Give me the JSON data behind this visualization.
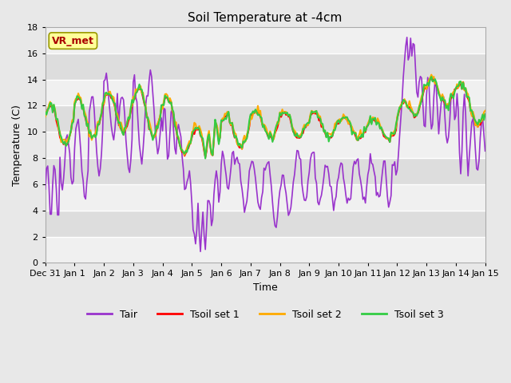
{
  "title": "Soil Temperature at -4cm",
  "xlabel": "Time",
  "ylabel": "Temperature (C)",
  "ylim": [
    0,
    18
  ],
  "series": {
    "Tair": {
      "color": "#9933cc",
      "linewidth": 1.2,
      "zorder": 3
    },
    "Tsoil set 1": {
      "color": "#ff0000",
      "linewidth": 1.5,
      "zorder": 4
    },
    "Tsoil set 2": {
      "color": "#ffaa00",
      "linewidth": 1.5,
      "zorder": 5
    },
    "Tsoil set 3": {
      "color": "#33cc44",
      "linewidth": 1.5,
      "zorder": 6
    }
  },
  "bg_color": "#e8e8e8",
  "plot_bg_color_light": "#f0f0f0",
  "plot_bg_color_dark": "#dddddd",
  "annotation_text": "VR_met",
  "annotation_color": "#aa0000",
  "annotation_bg": "#ffff99",
  "annotation_border": "#999900",
  "title_fontsize": 11,
  "axis_fontsize": 9,
  "tick_fontsize": 8,
  "grid_color": "#ffffff",
  "grid_linewidth": 1.0,
  "yticks": [
    0,
    2,
    4,
    6,
    8,
    10,
    12,
    14,
    16,
    18
  ],
  "xtick_labels": [
    "Dec 31",
    "Jan 1",
    "Jan 2",
    "Jan 3",
    "Jan 4",
    "Jan 5",
    "Jan 6",
    "Jan 7",
    "Jan 8",
    "Jan 9",
    "Jan 10",
    "Jan 11",
    "Jan 12",
    "Jan 13",
    "Jan 14",
    "Jan 15"
  ]
}
